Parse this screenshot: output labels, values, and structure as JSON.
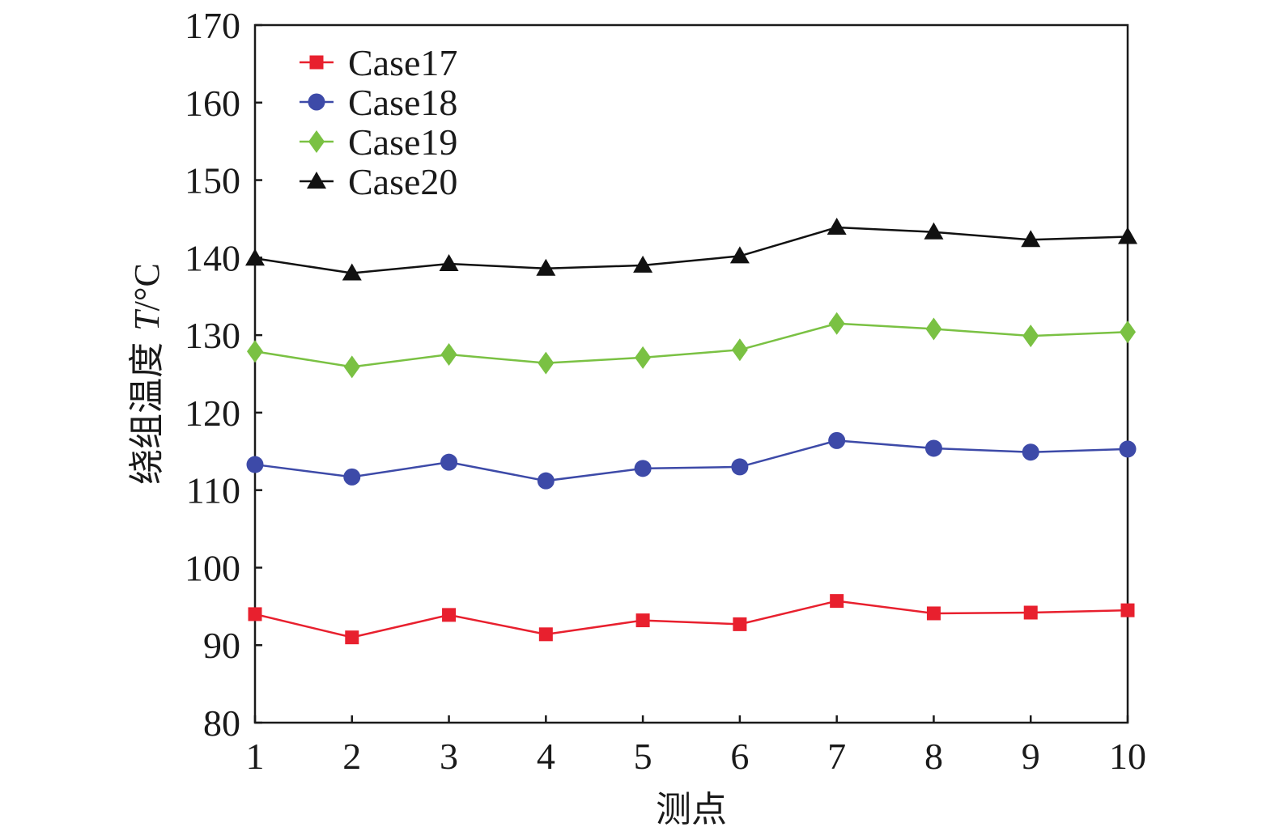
{
  "chart_data": {
    "type": "line",
    "title": "",
    "xlabel": "测点",
    "ylabel": "绕组温度 T/°C",
    "ylabel_parts": {
      "text": "绕组温度 ",
      "var": "T",
      "unit": "/°C"
    },
    "x": [
      1,
      2,
      3,
      4,
      5,
      6,
      7,
      8,
      9,
      10
    ],
    "xlim": [
      1,
      10
    ],
    "ylim": [
      80,
      170
    ],
    "yticks": [
      80,
      90,
      100,
      110,
      120,
      130,
      140,
      150,
      160,
      170
    ],
    "grid": false,
    "legend_position": "top-left",
    "series": [
      {
        "name": "Case17",
        "color": "#e8202e",
        "marker": "square",
        "values": [
          94.0,
          91.0,
          93.9,
          91.4,
          93.2,
          92.7,
          95.7,
          94.1,
          94.2,
          94.5
        ]
      },
      {
        "name": "Case18",
        "color": "#3d4aa8",
        "marker": "circle",
        "values": [
          113.3,
          111.7,
          113.6,
          111.2,
          112.8,
          113.0,
          116.4,
          115.4,
          114.9,
          115.3
        ]
      },
      {
        "name": "Case19",
        "color": "#7ac143",
        "marker": "diamond",
        "values": [
          127.9,
          125.9,
          127.5,
          126.4,
          127.1,
          128.1,
          131.5,
          130.8,
          129.9,
          130.4
        ]
      },
      {
        "name": "Case20",
        "color": "#111111",
        "marker": "triangle",
        "values": [
          139.9,
          138.0,
          139.2,
          138.6,
          139.0,
          140.2,
          143.9,
          143.3,
          142.3,
          142.7
        ]
      }
    ]
  }
}
